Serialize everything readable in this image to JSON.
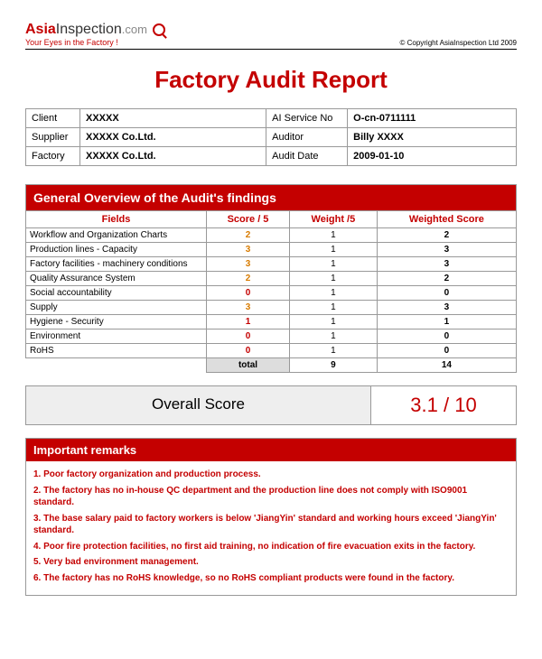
{
  "logo": {
    "brand1": "Asia",
    "brand2": "Inspection",
    "suffix": ".com",
    "tagline": "Your Eyes in the Factory !"
  },
  "copyright": "© Copyright AsiaInspection Ltd 2009",
  "title": "Factory Audit Report",
  "info": {
    "client_lbl": "Client",
    "client_val": "XXXXX",
    "service_lbl": "AI Service No",
    "service_val": "O-cn-0711111",
    "supplier_lbl": "Supplier",
    "supplier_val": "XXXXX Co.Ltd.",
    "auditor_lbl": "Auditor",
    "auditor_val": "Billy XXXX",
    "factory_lbl": "Factory",
    "factory_val": "XXXXX Co.Ltd.",
    "date_lbl": "Audit Date",
    "date_val": "2009-01-10"
  },
  "overview": {
    "banner": "General Overview of the Audit's findings",
    "h_fields": "Fields",
    "h_score": "Score / 5",
    "h_weight": "Weight /5",
    "h_wscore": "Weighted Score",
    "rows": [
      {
        "f": "Workflow and Organization Charts",
        "s": "2",
        "w": "1",
        "ws": "2",
        "cls": "sc2"
      },
      {
        "f": "Production lines - Capacity",
        "s": "3",
        "w": "1",
        "ws": "3",
        "cls": "sc3"
      },
      {
        "f": "Factory facilities - machinery conditions",
        "s": "3",
        "w": "1",
        "ws": "3",
        "cls": "sc3"
      },
      {
        "f": "Quality Assurance System",
        "s": "2",
        "w": "1",
        "ws": "2",
        "cls": "sc2"
      },
      {
        "f": "Social accountability",
        "s": "0",
        "w": "1",
        "ws": "0",
        "cls": "sc0"
      },
      {
        "f": "Supply",
        "s": "3",
        "w": "1",
        "ws": "3",
        "cls": "sc3"
      },
      {
        "f": "Hygiene - Security",
        "s": "1",
        "w": "1",
        "ws": "1",
        "cls": "sc1"
      },
      {
        "f": "Environment",
        "s": "0",
        "w": "1",
        "ws": "0",
        "cls": "sc0"
      },
      {
        "f": "RoHS",
        "s": "0",
        "w": "1",
        "ws": "0",
        "cls": "sc0"
      }
    ],
    "total_lbl": "total",
    "total_w": "9",
    "total_ws": "14"
  },
  "overall": {
    "lbl": "Overall Score",
    "val": "3.1 / 10"
  },
  "remarks": {
    "banner": "Important remarks",
    "items": [
      "1. Poor factory organization and production process.",
      "2. The factory has no in-house QC department and the production line does not comply with ISO9001 standard.",
      "3. The base salary paid to factory workers is below 'JiangYin' standard and working hours exceed 'JiangYin' standard.",
      "4. Poor fire protection facilities, no first aid training, no indication of fire evacuation exits in the factory.",
      "5. Very bad environment management.",
      "6. The factory has no RoHS knowledge, so no RoHS compliant products were found in the factory."
    ]
  },
  "colors": {
    "accent": "#c40000",
    "orange": "#d87b00",
    "border": "#999999",
    "bg": "#ffffff",
    "totalbg": "#dddddd",
    "overallbg": "#eeeeee"
  }
}
